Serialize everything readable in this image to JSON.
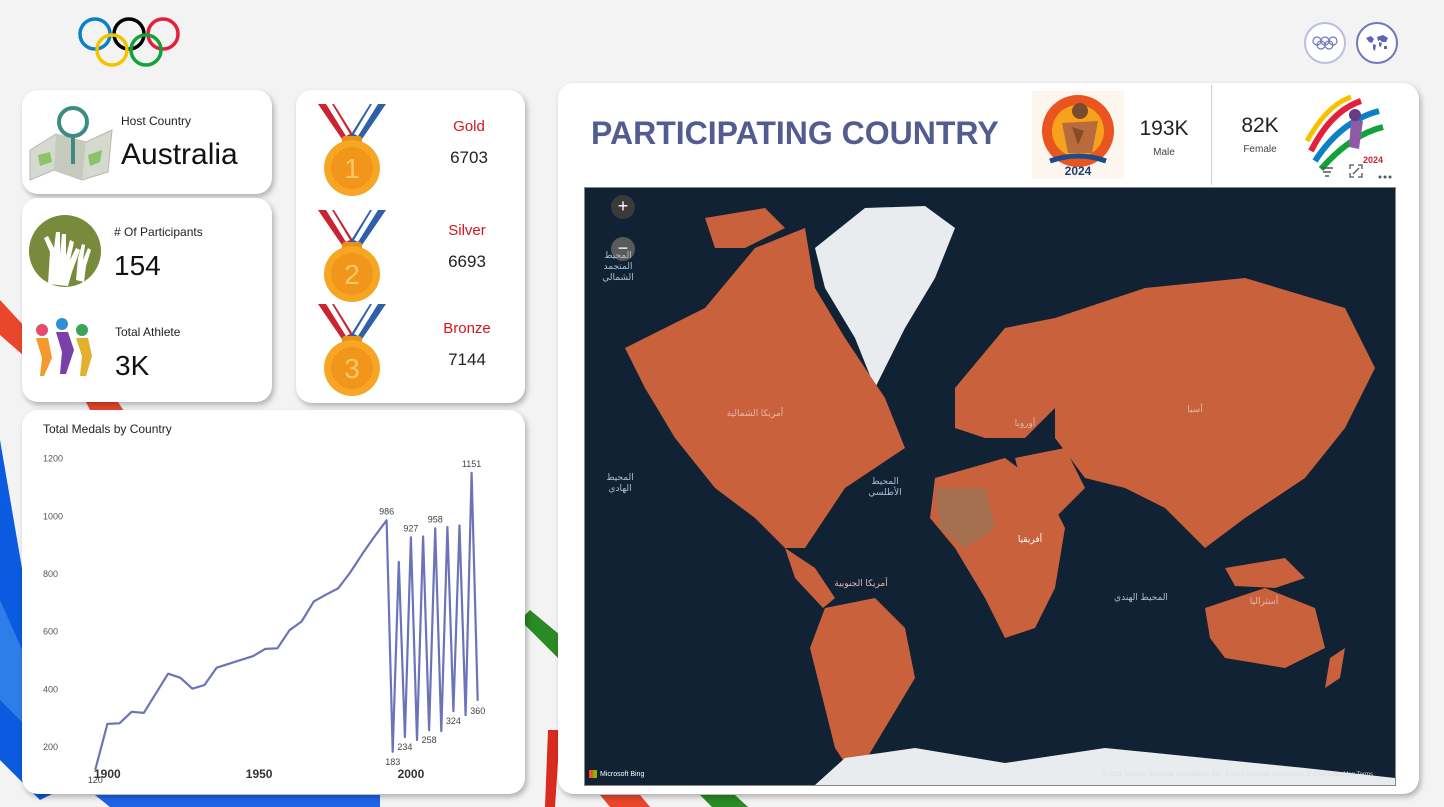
{
  "header": {
    "logo_name": "olympic-rings",
    "buttons": [
      {
        "name": "olympic-rings-button",
        "icon": "rings-icon"
      },
      {
        "name": "world-map-button",
        "icon": "world-map-icon"
      }
    ]
  },
  "host": {
    "label": "Host Country",
    "value": "Australia"
  },
  "participants": {
    "label": "# Of Participants",
    "value": "154"
  },
  "athletes": {
    "label": "Total Athlete",
    "value": "3K"
  },
  "medals": [
    {
      "name": "Gold",
      "number": "1",
      "value": "6703"
    },
    {
      "name": "Silver",
      "number": "2",
      "value": "6693"
    },
    {
      "name": "Bronze",
      "number": "3",
      "value": "7144"
    }
  ],
  "map_card": {
    "title": "PARTICIPATING COUNTRY",
    "male": {
      "value": "193K",
      "label": "Male"
    },
    "female": {
      "value": "82K",
      "label": "Female"
    },
    "poster_year": "2024",
    "labels": {
      "north_america": "أمريكا الشمالية",
      "south_america": "أمريكا الجنوبية",
      "europe": "أوروبا",
      "asia": "آسيا",
      "africa": "أفريقيا",
      "australia": "أستراليا",
      "pacific_ocean": "المحيط الهادي",
      "atlantic_ocean": "المحيط الأطلسي",
      "indian_ocean": "المحيط الهندي",
      "arctic_ocean": "المحيط المتجمد الشمالي"
    },
    "bing_label": "Microsoft Bing",
    "attribution": "© 2025 TomTom, Earthstar Geographics SIO, © 2025 Microsoft Corporation, © OpenStreetMap Terms"
  },
  "colors": {
    "accent": "#535c91",
    "line": "#6b74b8",
    "medal_text": "#d3151b",
    "map_fill": "#c8613c"
  },
  "chart_data": {
    "type": "line",
    "title": "Total Medals by Country",
    "xlabel": "",
    "ylabel": "",
    "x_ticks": [
      "1900",
      "1950",
      "2000"
    ],
    "y_ticks": [
      "200",
      "400",
      "600",
      "800",
      "1000",
      "1200"
    ],
    "xlim": [
      1890,
      2030
    ],
    "ylim": [
      120,
      1230
    ],
    "x": [
      1896,
      1900,
      1904,
      1908,
      1912,
      1920,
      1924,
      1928,
      1932,
      1936,
      1948,
      1952,
      1956,
      1960,
      1964,
      1968,
      1972,
      1976,
      1980,
      1984,
      1988,
      1992,
      1994,
      1996,
      1998,
      2000,
      2002,
      2004,
      2006,
      2008,
      2010,
      2012,
      2014,
      2016,
      2018,
      2020,
      2022
    ],
    "values": [
      120,
      280,
      282,
      322,
      318,
      454,
      440,
      402,
      415,
      475,
      515,
      540,
      542,
      605,
      635,
      705,
      728,
      750,
      805,
      870,
      930,
      986,
      183,
      842,
      234,
      927,
      224,
      930,
      258,
      958,
      255,
      963,
      324,
      968,
      310,
      1151,
      360
    ],
    "data_labels": [
      {
        "x": 1896,
        "text": "120"
      },
      {
        "x": 1992,
        "text": "986"
      },
      {
        "x": 1994,
        "text": "183"
      },
      {
        "x": 1998,
        "text": "234"
      },
      {
        "x": 2000,
        "text": "927"
      },
      {
        "x": 2006,
        "text": "258"
      },
      {
        "x": 2008,
        "text": "958"
      },
      {
        "x": 2014,
        "text": "324"
      },
      {
        "x": 2020,
        "text": "1151"
      },
      {
        "x": 2022,
        "text": "360"
      }
    ]
  }
}
